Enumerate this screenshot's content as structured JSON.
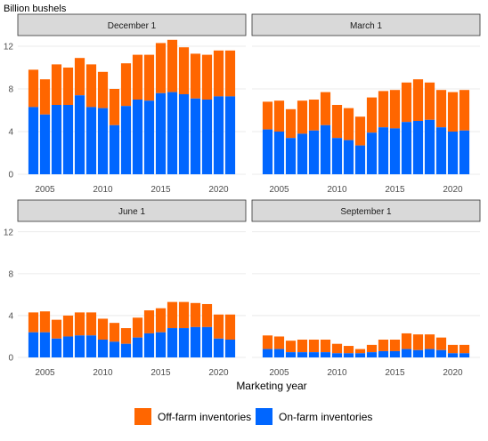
{
  "chart_data": {
    "type": "bar",
    "stacked": true,
    "ylabel": "Billion bushels",
    "xlabel": "Marketing year",
    "ylim": [
      0,
      13
    ],
    "yticks": [
      0,
      4,
      8,
      12
    ],
    "xticks": [
      2005,
      2010,
      2015,
      2020
    ],
    "years": [
      2004,
      2005,
      2006,
      2007,
      2008,
      2009,
      2010,
      2011,
      2012,
      2013,
      2014,
      2015,
      2016,
      2017,
      2018,
      2019,
      2020,
      2021
    ],
    "series": [
      {
        "name": "Off-farm inventories",
        "color": "#FF6600"
      },
      {
        "name": "On-farm inventories",
        "color": "#0066FF"
      }
    ],
    "panels": [
      {
        "title": "December 1",
        "on_farm": [
          6.3,
          5.6,
          6.5,
          6.5,
          7.4,
          6.3,
          6.2,
          4.6,
          6.4,
          7.0,
          6.9,
          7.6,
          7.7,
          7.5,
          7.1,
          7.0,
          7.3,
          7.3
        ],
        "off_farm": [
          3.5,
          3.3,
          3.8,
          3.5,
          3.5,
          4.0,
          3.4,
          3.4,
          4.0,
          4.2,
          4.3,
          4.7,
          4.9,
          4.4,
          4.2,
          4.2,
          4.3,
          4.3
        ]
      },
      {
        "title": "March 1",
        "on_farm": [
          4.2,
          4.0,
          3.4,
          3.8,
          4.1,
          4.6,
          3.4,
          3.2,
          2.7,
          3.9,
          4.4,
          4.3,
          4.9,
          5.0,
          5.1,
          4.4,
          4.0,
          4.1
        ],
        "off_farm": [
          2.6,
          2.9,
          2.7,
          3.1,
          2.9,
          3.1,
          3.1,
          3.0,
          2.7,
          3.3,
          3.4,
          3.6,
          3.7,
          3.9,
          3.5,
          3.5,
          3.7,
          3.8
        ]
      },
      {
        "title": "June 1",
        "on_farm": [
          2.4,
          2.4,
          1.8,
          2.0,
          2.1,
          2.1,
          1.7,
          1.5,
          1.3,
          1.9,
          2.3,
          2.4,
          2.8,
          2.8,
          2.9,
          2.9,
          1.8,
          1.7
        ],
        "off_farm": [
          1.9,
          2.0,
          1.8,
          2.0,
          2.2,
          2.2,
          2.0,
          1.8,
          1.5,
          1.9,
          2.2,
          2.3,
          2.5,
          2.5,
          2.3,
          2.2,
          2.3,
          2.4
        ]
      },
      {
        "title": "September 1",
        "on_farm": [
          0.8,
          0.8,
          0.5,
          0.5,
          0.5,
          0.5,
          0.4,
          0.4,
          0.4,
          0.5,
          0.6,
          0.6,
          0.8,
          0.7,
          0.8,
          0.7,
          0.4,
          0.4
        ],
        "off_farm": [
          1.3,
          1.2,
          1.1,
          1.2,
          1.2,
          1.2,
          0.9,
          0.7,
          0.4,
          0.7,
          1.1,
          1.1,
          1.5,
          1.5,
          1.4,
          1.2,
          0.8,
          0.8
        ]
      }
    ],
    "legend": {
      "position": "bottom"
    }
  }
}
